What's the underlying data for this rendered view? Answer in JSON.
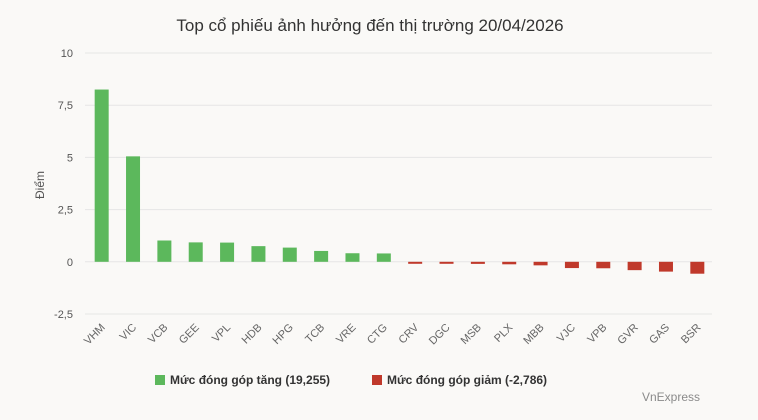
{
  "chart_data": {
    "type": "bar",
    "title": "Top cổ phiếu ảnh hưởng đến thị trường 20/04/2026",
    "ylabel": "Điểm",
    "xlabel": "",
    "ylim": [
      -2.5,
      10
    ],
    "yticks": [
      {
        "value": 10,
        "label": "10"
      },
      {
        "value": 7.5,
        "label": "7,5"
      },
      {
        "value": 5,
        "label": "5"
      },
      {
        "value": 2.5,
        "label": "2,5"
      },
      {
        "value": 0,
        "label": "0"
      },
      {
        "value": -2.5,
        "label": "-2,5"
      }
    ],
    "grid": true,
    "legend_position": "bottom",
    "categories": [
      "VHM",
      "VIC",
      "VCB",
      "GEE",
      "VPL",
      "HDB",
      "HPG",
      "TCB",
      "VRE",
      "CTG",
      "CRV",
      "DGC",
      "MSB",
      "PLX",
      "MBB",
      "VJC",
      "VPB",
      "GVR",
      "GAS",
      "BSR"
    ],
    "series": [
      {
        "name": "Mức đóng góp tăng (19,255)",
        "color": "#5cb85c",
        "values": [
          8.25,
          5.05,
          1.02,
          0.93,
          0.92,
          0.75,
          0.68,
          0.52,
          0.41,
          0.4,
          null,
          null,
          null,
          null,
          null,
          null,
          null,
          null,
          null,
          null
        ]
      },
      {
        "name": "Mức đóng góp giảm (-2,786)",
        "color": "#c0392b",
        "values": [
          null,
          null,
          null,
          null,
          null,
          null,
          null,
          null,
          null,
          null,
          -0.06,
          -0.07,
          -0.1,
          -0.12,
          -0.17,
          -0.3,
          -0.31,
          -0.4,
          -0.47,
          -0.57
        ]
      }
    ]
  },
  "credit": "VnExpress"
}
